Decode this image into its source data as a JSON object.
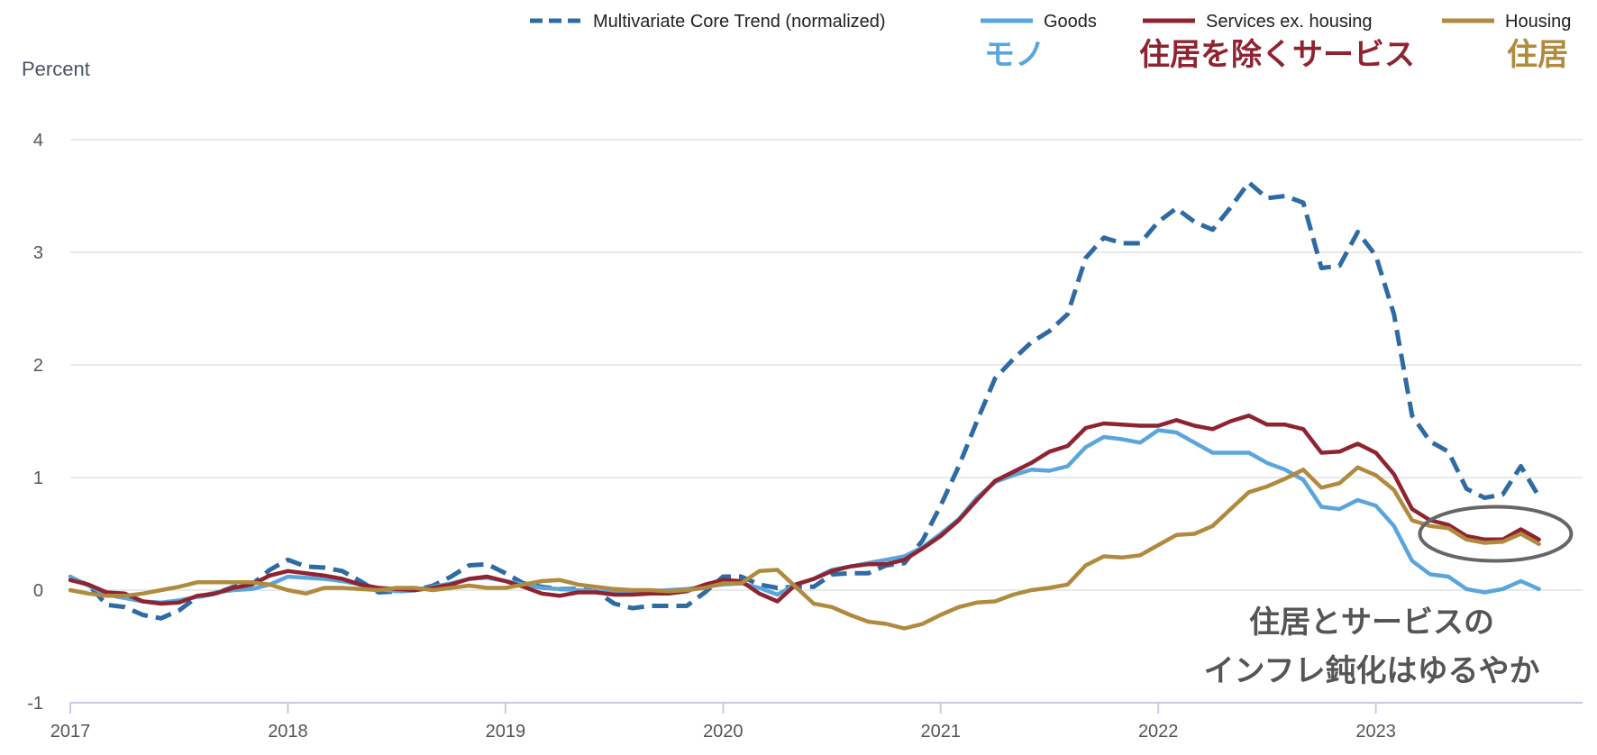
{
  "chart_data": {
    "type": "line",
    "title": "",
    "xlabel": "",
    "ylabel": "Percent",
    "ylim": [
      -1,
      4
    ],
    "yticks": [
      -1,
      0,
      1,
      2,
      3,
      4
    ],
    "xlim": [
      2017,
      2023.95
    ],
    "xticks": [
      2017,
      2018,
      2019,
      2020,
      2021,
      2022,
      2023
    ],
    "grid": true,
    "legend": "top-right",
    "x_start": 2017,
    "x_step": 0.08333,
    "series": [
      {
        "name": "Multivariate Core Trend (normalized)",
        "japanese_label": "",
        "color": "#2e6aa3",
        "dashed": true,
        "values": [
          0.1,
          0.05,
          -0.13,
          -0.15,
          -0.22,
          -0.25,
          -0.18,
          -0.06,
          -0.03,
          0.03,
          0.05,
          0.18,
          0.27,
          0.21,
          0.2,
          0.17,
          0.08,
          -0.02,
          -0.01,
          0.0,
          0.04,
          0.12,
          0.22,
          0.23,
          0.15,
          0.06,
          0.03,
          0.01,
          0.01,
          -0.01,
          -0.12,
          -0.16,
          -0.14,
          -0.14,
          -0.14,
          -0.02,
          0.12,
          0.12,
          0.05,
          0.02,
          0.03,
          0.03,
          0.14,
          0.15,
          0.15,
          0.22,
          0.24,
          0.44,
          0.75,
          1.1,
          1.5,
          1.88,
          2.05,
          2.2,
          2.3,
          2.45,
          2.95,
          3.13,
          3.08,
          3.08,
          3.27,
          3.39,
          3.27,
          3.2,
          3.4,
          3.62,
          3.48,
          3.5,
          3.44,
          2.86,
          2.88,
          3.18,
          2.97,
          2.45,
          1.55,
          1.32,
          1.23,
          0.9,
          0.82,
          0.85,
          1.1,
          0.83
        ]
      },
      {
        "name": "Goods",
        "japanese_label": "モノ",
        "color": "#5aa6dc",
        "dashed": false,
        "values": [
          0.12,
          0.04,
          -0.04,
          -0.07,
          -0.1,
          -0.11,
          -0.09,
          -0.06,
          -0.02,
          0.0,
          0.01,
          0.05,
          0.12,
          0.11,
          0.1,
          0.08,
          0.05,
          0.01,
          -0.01,
          0.0,
          0.03,
          0.06,
          0.1,
          0.11,
          0.08,
          0.05,
          0.02,
          0.01,
          0.0,
          -0.01,
          -0.02,
          -0.02,
          -0.01,
          0.0,
          0.01,
          0.03,
          0.05,
          0.06,
          0.02,
          -0.04,
          0.05,
          0.1,
          0.18,
          0.21,
          0.24,
          0.27,
          0.3,
          0.38,
          0.5,
          0.63,
          0.82,
          0.96,
          1.02,
          1.07,
          1.06,
          1.1,
          1.27,
          1.36,
          1.34,
          1.31,
          1.42,
          1.4,
          1.31,
          1.22,
          1.22,
          1.22,
          1.13,
          1.07,
          0.98,
          0.74,
          0.72,
          0.8,
          0.75,
          0.57,
          0.26,
          0.14,
          0.12,
          0.01,
          -0.02,
          0.01,
          0.08,
          0.01
        ]
      },
      {
        "name": "Services ex. housing",
        "japanese_label": "住居を除くサービス",
        "color": "#8f2430",
        "dashed": false,
        "values": [
          0.09,
          0.05,
          -0.02,
          -0.03,
          -0.1,
          -0.12,
          -0.11,
          -0.05,
          -0.03,
          0.02,
          0.05,
          0.13,
          0.17,
          0.15,
          0.13,
          0.1,
          0.05,
          0.02,
          0.01,
          0.0,
          0.02,
          0.05,
          0.1,
          0.12,
          0.08,
          0.03,
          -0.03,
          -0.05,
          -0.02,
          -0.02,
          -0.04,
          -0.04,
          -0.03,
          -0.03,
          -0.01,
          0.05,
          0.09,
          0.08,
          -0.03,
          -0.1,
          0.05,
          0.1,
          0.17,
          0.21,
          0.23,
          0.23,
          0.27,
          0.37,
          0.48,
          0.62,
          0.8,
          0.97,
          1.05,
          1.13,
          1.23,
          1.28,
          1.44,
          1.48,
          1.47,
          1.46,
          1.46,
          1.51,
          1.46,
          1.43,
          1.5,
          1.55,
          1.47,
          1.47,
          1.43,
          1.22,
          1.23,
          1.3,
          1.22,
          1.03,
          0.72,
          0.62,
          0.58,
          0.48,
          0.45,
          0.45,
          0.54,
          0.45
        ]
      },
      {
        "name": "Housing",
        "japanese_label": "住居",
        "color": "#b08a3e",
        "dashed": false,
        "values": [
          0.0,
          -0.03,
          -0.05,
          -0.05,
          -0.03,
          0.0,
          0.03,
          0.07,
          0.07,
          0.07,
          0.07,
          0.05,
          0.0,
          -0.03,
          0.02,
          0.02,
          0.01,
          0.0,
          0.02,
          0.02,
          0.0,
          0.02,
          0.04,
          0.02,
          0.02,
          0.05,
          0.08,
          0.09,
          0.05,
          0.03,
          0.01,
          0.0,
          0.0,
          -0.01,
          0.0,
          0.02,
          0.06,
          0.06,
          0.17,
          0.18,
          0.03,
          -0.12,
          -0.15,
          -0.22,
          -0.28,
          -0.3,
          -0.34,
          -0.3,
          -0.22,
          -0.15,
          -0.11,
          -0.1,
          -0.04,
          0.0,
          0.02,
          0.05,
          0.22,
          0.3,
          0.29,
          0.31,
          0.4,
          0.49,
          0.5,
          0.57,
          0.72,
          0.87,
          0.92,
          0.99,
          1.07,
          0.91,
          0.95,
          1.09,
          1.02,
          0.89,
          0.62,
          0.57,
          0.55,
          0.45,
          0.42,
          0.43,
          0.5,
          0.41
        ]
      }
    ],
    "annotation": {
      "lines": [
        "住居とサービスの",
        "インフレ鈍化はゆるやか"
      ],
      "ellipse_center": [
        2023.55,
        0.5
      ]
    }
  }
}
